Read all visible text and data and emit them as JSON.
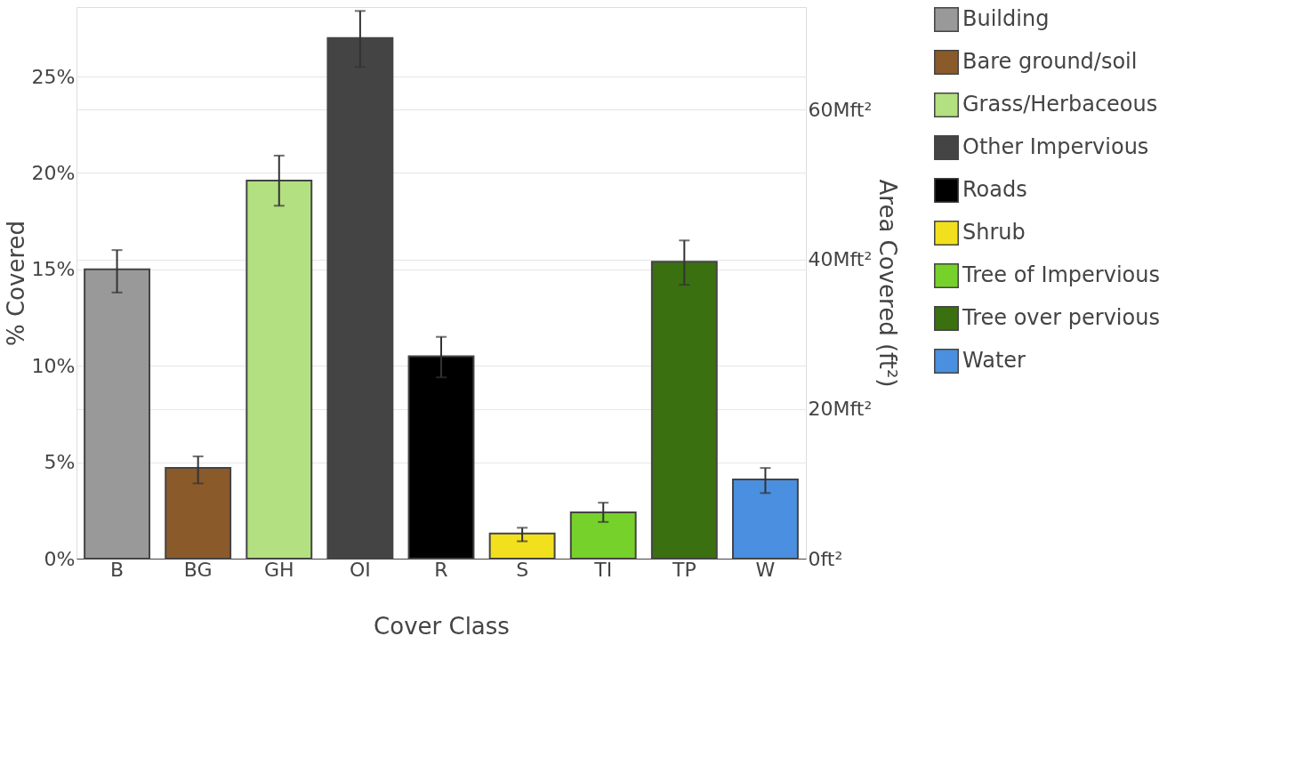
{
  "chart_data": {
    "type": "bar",
    "xlabel": "Cover Class",
    "ylabel": "% Covered",
    "y2label": "Area Covered (ft²)",
    "categories": [
      "B",
      "BG",
      "GH",
      "OI",
      "R",
      "S",
      "TI",
      "TP",
      "W"
    ],
    "series": [
      {
        "name": "Building",
        "color": "#999999",
        "values": [
          15.0,
          null,
          null,
          null,
          null,
          null,
          null,
          null,
          null
        ],
        "errors": [
          [
            13.8,
            16.0
          ],
          null,
          null,
          null,
          null,
          null,
          null,
          null,
          null
        ]
      },
      {
        "name": "Bare ground/soil",
        "color": "#8b5a2b",
        "values": [
          null,
          4.7,
          null,
          null,
          null,
          null,
          null,
          null,
          null
        ],
        "errors": [
          null,
          [
            3.9,
            5.3
          ],
          null,
          null,
          null,
          null,
          null,
          null,
          null
        ]
      },
      {
        "name": "Grass/Herbaceous",
        "color": "#b3e080",
        "values": [
          null,
          null,
          19.6,
          null,
          null,
          null,
          null,
          null,
          null
        ],
        "errors": [
          null,
          null,
          [
            18.3,
            20.9
          ],
          null,
          null,
          null,
          null,
          null,
          null
        ]
      },
      {
        "name": "Other Impervious",
        "color": "#444444",
        "values": [
          null,
          null,
          null,
          27.0,
          null,
          null,
          null,
          null,
          null
        ],
        "errors": [
          null,
          null,
          null,
          [
            25.5,
            28.4
          ],
          null,
          null,
          null,
          null,
          null
        ]
      },
      {
        "name": "Roads",
        "color": "#000000",
        "values": [
          null,
          null,
          null,
          null,
          10.5,
          null,
          null,
          null,
          null
        ],
        "errors": [
          null,
          null,
          null,
          null,
          [
            9.4,
            11.5
          ],
          null,
          null,
          null,
          null
        ]
      },
      {
        "name": "Shrub",
        "color": "#f2e01e",
        "values": [
          null,
          null,
          null,
          null,
          null,
          1.3,
          null,
          null,
          null
        ],
        "errors": [
          null,
          null,
          null,
          null,
          null,
          [
            0.9,
            1.6
          ],
          null,
          null,
          null
        ]
      },
      {
        "name": "Tree of Impervious",
        "color": "#77d12b",
        "values": [
          null,
          null,
          null,
          null,
          null,
          null,
          2.4,
          null,
          null
        ],
        "errors": [
          null,
          null,
          null,
          null,
          null,
          null,
          [
            1.9,
            2.9
          ],
          null,
          null
        ]
      },
      {
        "name": "Tree over pervious",
        "color": "#3a7010",
        "values": [
          null,
          null,
          null,
          null,
          null,
          null,
          null,
          15.4,
          null
        ],
        "errors": [
          null,
          null,
          null,
          null,
          null,
          null,
          null,
          [
            14.2,
            16.5
          ],
          null
        ]
      },
      {
        "name": "Water",
        "color": "#4a8fe0",
        "values": [
          null,
          null,
          null,
          null,
          null,
          null,
          null,
          null,
          4.1
        ],
        "errors": [
          null,
          null,
          null,
          null,
          null,
          null,
          null,
          null,
          [
            3.4,
            4.7
          ]
        ]
      }
    ],
    "ylim": [
      0,
      28.6
    ],
    "yticks": [
      {
        "value": 0,
        "label": "0%"
      },
      {
        "value": 5,
        "label": "5%"
      },
      {
        "value": 10,
        "label": "10%"
      },
      {
        "value": 15,
        "label": "15%"
      },
      {
        "value": 20,
        "label": "20%"
      },
      {
        "value": 25,
        "label": "25%"
      }
    ],
    "y2lim": [
      0,
      73.7
    ],
    "y2ticks": [
      {
        "value": 0,
        "label": "0ft²"
      },
      {
        "value": 20,
        "label": "20Mft²"
      },
      {
        "value": 40,
        "label": "40Mft²"
      },
      {
        "value": 60,
        "label": "60Mft²"
      }
    ],
    "grid": true,
    "legend": "right"
  }
}
